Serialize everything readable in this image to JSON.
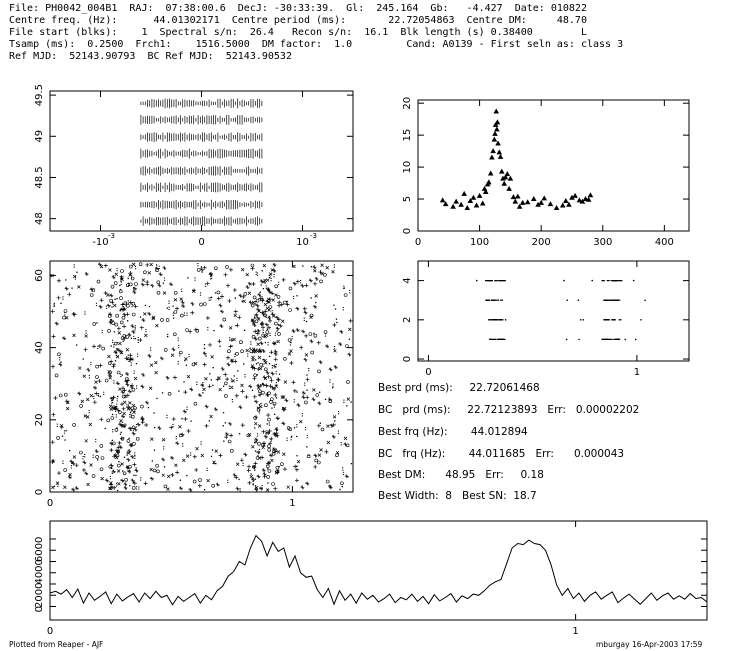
{
  "header": {
    "lines": [
      "File: PH0042_004B1  RAJ:  07:38:00.6  DecJ: -30:33:39.  Gl:  245.164  Gb:   -4.427  Date: 010822",
      "Centre freq. (Hz):      44.01302171  Centre period (ms):       22.72054863  Centre DM:     48.70",
      "File start (blks):    1  Spectral s/n:  26.4   Recon s/n:  16.1  Blk length (s) 0.38400        L",
      "Tsamp (ms):  0.2500  Frch1:    1516.5000  DM factor:  1.0         Cand: A0139 - First seln as: class 3",
      "Ref MJD:  52143.90793  BC Ref MJD:  52143.90532"
    ]
  },
  "stats": {
    "best_prd": "Best prd (ms):     22.72061468",
    "bc_prd": "BC   prd (ms):     22.72123893   Err:   0.00002202",
    "best_frq": "Best frq (Hz):       44.012894",
    "bc_frq": "BC   frq (Hz):       44.011685   Err:      0.000043",
    "best_dm": "Best DM:      48.95   Err:     0.18",
    "best_width": "Best Width:  8   Best SN:  18.7"
  },
  "footer": {
    "left": "Plotted from Reaper - AJF",
    "right": "mburgay 16-Apr-2003 17:59"
  },
  "chart_data": [
    {
      "id": "period-dm-plane",
      "type": "scatter",
      "x_ticks": [
        "-10",
        "0",
        "10"
      ],
      "x_tick_exponent": "-3",
      "y_ticks": [
        "48",
        "48.5",
        "49",
        "49.5"
      ],
      "rows_y": [
        47.97,
        48.17,
        48.38,
        48.58,
        48.79,
        48.99,
        49.2,
        49.4
      ],
      "x_range": [
        -0.0006,
        0.0006
      ],
      "xlim": [
        -0.0015,
        0.0015
      ],
      "ylim": [
        47.85,
        49.55
      ]
    },
    {
      "id": "snr-vs-dm",
      "type": "scatter",
      "xlim": [
        0,
        440
      ],
      "ylim": [
        0,
        20.5
      ],
      "x_ticks": [
        0,
        100,
        200,
        300,
        400
      ],
      "y_ticks": [
        0,
        5,
        10,
        15,
        20
      ],
      "x": [
        40,
        45,
        57,
        62,
        70,
        75,
        80,
        85,
        90,
        95,
        100,
        105,
        108,
        110,
        113,
        115,
        118,
        120,
        122,
        124,
        125,
        126,
        127,
        128,
        129,
        130,
        132,
        134,
        136,
        138,
        140,
        142,
        145,
        148,
        150,
        155,
        158,
        162,
        165,
        170,
        178,
        188,
        195,
        200,
        205,
        215,
        225,
        235,
        240,
        245,
        250,
        255,
        262,
        267,
        272,
        277,
        280
      ],
      "y": [
        4.8,
        4.2,
        3.8,
        4.6,
        4.1,
        5.8,
        3.6,
        4.7,
        5.2,
        4.0,
        5.5,
        4.3,
        6.6,
        6.1,
        7.3,
        7.6,
        9.0,
        11.5,
        12.5,
        14.3,
        15.2,
        16.6,
        18.7,
        15.9,
        17.0,
        13.7,
        12.3,
        11.6,
        9.3,
        8.2,
        7.4,
        8.4,
        8.9,
        6.6,
        8.2,
        5.3,
        4.6,
        5.4,
        3.8,
        4.4,
        4.5,
        5.0,
        4.1,
        4.4,
        5.1,
        4.2,
        3.6,
        4.0,
        4.7,
        4.1,
        5.2,
        5.5,
        4.8,
        4.6,
        5.0,
        4.9,
        5.6
      ]
    },
    {
      "id": "sub-band-scatter",
      "type": "scatter",
      "xlim": [
        -0.05,
        1.25
      ],
      "ylim": [
        -0.1,
        5
      ],
      "x_ticks": [
        0,
        1
      ],
      "y_ticks": [
        0,
        2,
        4
      ],
      "rows": [
        1,
        2,
        3,
        4
      ],
      "clusters_x": [
        0.32,
        0.88
      ]
    },
    {
      "id": "time-vs-phase",
      "type": "heatmap",
      "xlim": [
        0,
        1.25
      ],
      "ylim": [
        0,
        64
      ],
      "x_ticks": [
        0,
        1
      ],
      "y_ticks": [
        0,
        20,
        40,
        60
      ],
      "stripe_phases": [
        0.3,
        0.89
      ]
    },
    {
      "id": "pulse-profile",
      "type": "line",
      "xlim": [
        0,
        1.25
      ],
      "y_ticks": [
        "0",
        "2000",
        "4000",
        "6000"
      ],
      "values": [
        1200,
        1350,
        1100,
        1500,
        800,
        1550,
        300,
        1200,
        550,
        900,
        1300,
        250,
        1100,
        500,
        850,
        1150,
        400,
        1200,
        700,
        1350,
        800,
        1000,
        150,
        900,
        450,
        800,
        1150,
        300,
        1000,
        600,
        1400,
        1800,
        2700,
        3100,
        4000,
        3700,
        5200,
        6300,
        5800,
        4500,
        5700,
        4900,
        5200,
        3500,
        4500,
        3000,
        2600,
        2700,
        1500,
        800,
        1600,
        200,
        1400,
        550,
        1100,
        300,
        1200,
        650,
        1000,
        400,
        700,
        1100,
        350,
        800,
        600,
        1100,
        450,
        900,
        250,
        1050,
        500,
        800,
        1150,
        400,
        950,
        700,
        1100,
        1000,
        1400,
        1900,
        2200,
        2400,
        3800,
        5200,
        5600,
        5500,
        5900,
        5600,
        5500,
        5000,
        3700,
        1900,
        1000,
        1600,
        700,
        1200,
        450,
        1000,
        1300,
        650,
        1000,
        1300,
        350,
        750,
        1100,
        650,
        200,
        700,
        1200,
        550,
        950,
        1200,
        650,
        950,
        650,
        1150,
        700,
        800,
        400
      ]
    }
  ]
}
